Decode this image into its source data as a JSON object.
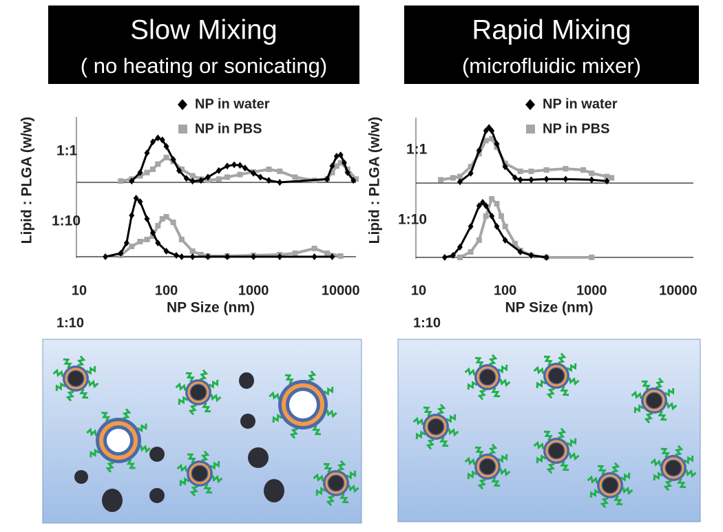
{
  "chart_data": [
    {
      "type": "line",
      "title": "Slow Mixing",
      "subtitle": "( no heating or sonicating)",
      "ylabel": "Lipid : PLGA (w/w)",
      "xlabel": "NP Size (nm)",
      "xscale": "log",
      "xlim": [
        10,
        15000
      ],
      "xticks": [
        10,
        100,
        1000,
        10000
      ],
      "ylim": [
        0,
        100
      ],
      "legend": "top",
      "panel_labels": [
        "1:1",
        "1:10"
      ],
      "caption": "1:10",
      "series": [
        {
          "name": "NP in water",
          "color": "#000000",
          "marker": "diamond",
          "panels": [
            {
              "x": [
                40,
                50,
                60,
                70,
                80,
                90,
                100,
                120,
                140,
                170,
                200,
                250,
                300,
                400,
                500,
                600,
                700,
                800,
                1000,
                1200,
                1500,
                2000,
                7000,
                8000,
                9000,
                10000,
                11000,
                12000,
                14000
              ],
              "values": [
                2,
                15,
                45,
                62,
                68,
                65,
                55,
                35,
                18,
                6,
                2,
                3,
                8,
                18,
                25,
                27,
                26,
                22,
                14,
                8,
                3,
                0,
                5,
                25,
                40,
                42,
                30,
                15,
                3
              ]
            },
            {
              "x": [
                20,
                30,
                35,
                40,
                45,
                50,
                60,
                70,
                80,
                100,
                130,
                150,
                200,
                300,
                500,
                1000,
                2000,
                5000,
                8000
              ],
              "values": [
                0,
                5,
                20,
                60,
                85,
                80,
                55,
                35,
                20,
                8,
                2,
                0,
                0,
                0,
                0,
                0,
                0,
                0,
                0
              ]
            }
          ]
        },
        {
          "name": "NP in PBS",
          "color": "#a6a6a6",
          "marker": "square",
          "panels": [
            {
              "x": [
                30,
                40,
                50,
                60,
                70,
                80,
                100,
                120,
                150,
                200,
                250,
                300,
                400,
                500,
                700,
                1000,
                1500,
                2000,
                3000,
                5000,
                7000,
                8000,
                9000,
                10000,
                12000,
                15000
              ],
              "values": [
                2,
                5,
                10,
                15,
                20,
                28,
                38,
                32,
                20,
                10,
                5,
                3,
                5,
                8,
                12,
                16,
                20,
                17,
                8,
                3,
                5,
                15,
                25,
                30,
                20,
                5
              ]
            },
            {
              "x": [
                30,
                40,
                50,
                60,
                70,
                80,
                90,
                100,
                120,
                150,
                200,
                250,
                300,
                500,
                1000,
                2000,
                3000,
                5000,
                7000,
                10000
              ],
              "values": [
                2,
                15,
                22,
                25,
                30,
                45,
                55,
                58,
                50,
                25,
                8,
                3,
                1,
                1,
                2,
                3,
                5,
                12,
                5,
                1
              ]
            }
          ]
        }
      ]
    },
    {
      "type": "line",
      "title": "Rapid Mixing",
      "subtitle": "(microfluidic mixer)",
      "ylabel": "Lipid : PLGA (w/w)",
      "xlabel": "NP Size (nm)",
      "xscale": "log",
      "xlim": [
        10,
        15000
      ],
      "xticks": [
        10,
        100,
        1000,
        10000
      ],
      "ylim": [
        0,
        100
      ],
      "legend": "top",
      "panel_labels": [
        "1:1",
        "1:10"
      ],
      "caption": "1:10",
      "series": [
        {
          "name": "NP in water",
          "color": "#000000",
          "marker": "diamond",
          "panels": [
            {
              "x": [
                30,
                40,
                50,
                60,
                65,
                70,
                80,
                100,
                130,
                150,
                200,
                300,
                500,
                1000,
                1500
              ],
              "values": [
                2,
                15,
                50,
                80,
                85,
                80,
                60,
                25,
                8,
                5,
                5,
                6,
                6,
                5,
                3
              ]
            },
            {
              "x": [
                20,
                25,
                30,
                40,
                50,
                55,
                60,
                70,
                80,
                100,
                150,
                200,
                300
              ],
              "values": [
                0,
                3,
                15,
                45,
                75,
                80,
                75,
                60,
                45,
                25,
                8,
                3,
                0
              ]
            }
          ]
        },
        {
          "name": "NP in PBS",
          "color": "#a6a6a6",
          "marker": "square",
          "panels": [
            {
              "x": [
                18,
                25,
                30,
                40,
                50,
                60,
                70,
                80,
                100,
                150,
                200,
                300,
                500,
                800,
                1000,
                1500,
                1700
              ],
              "values": [
                5,
                8,
                10,
                25,
                45,
                65,
                68,
                55,
                30,
                18,
                18,
                20,
                22,
                20,
                15,
                10,
                8
              ]
            },
            {
              "x": [
                30,
                40,
                50,
                60,
                70,
                80,
                90,
                100,
                130,
                150,
                200,
                300,
                1000
              ],
              "values": [
                0,
                8,
                25,
                60,
                85,
                78,
                60,
                45,
                20,
                10,
                3,
                0,
                0
              ]
            }
          ]
        }
      ]
    }
  ]
}
